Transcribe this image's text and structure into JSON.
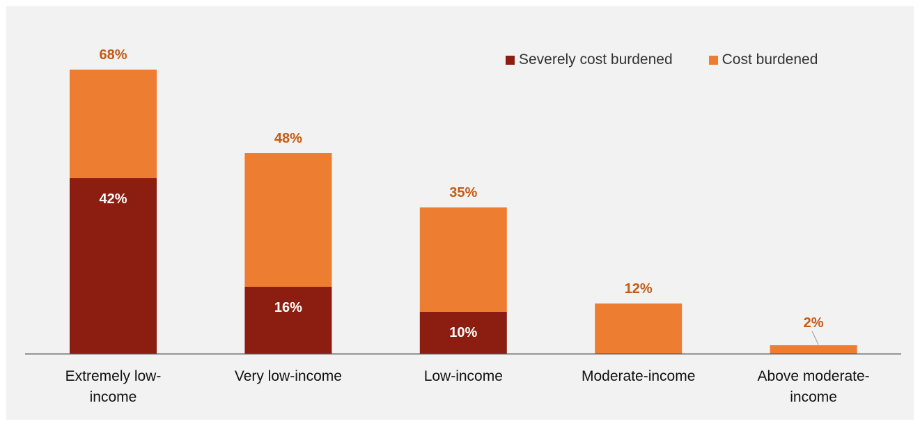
{
  "chart_data": {
    "type": "bar",
    "stacked": true,
    "title": "",
    "xlabel": "",
    "ylabel": "",
    "ylim": [
      0,
      70
    ],
    "grid": false,
    "legend_position": "top-right",
    "categories": [
      [
        "Extremely low-",
        "income"
      ],
      [
        "Very low-income"
      ],
      [
        "Low-income"
      ],
      [
        "Moderate-income"
      ],
      [
        "Above moderate-",
        "income"
      ]
    ],
    "series": [
      {
        "name": "Severely cost burdened",
        "color": "#8b1e10",
        "values": [
          42,
          16,
          10,
          0,
          0
        ],
        "labels": [
          "42%",
          "16%",
          "10%",
          "",
          ""
        ]
      },
      {
        "name": "Cost burdened",
        "color": "#ed7d31",
        "values": [
          26,
          32,
          25,
          12,
          2
        ],
        "labels": [
          "",
          "",
          "",
          "",
          ""
        ]
      }
    ],
    "totals": [
      68,
      48,
      35,
      12,
      2
    ],
    "total_labels": [
      "68%",
      "48%",
      "35%",
      "12%",
      "2%"
    ],
    "total_label_color": "#c55a11",
    "inner_label_color": "#ffffff",
    "axis_color": "#555555"
  }
}
